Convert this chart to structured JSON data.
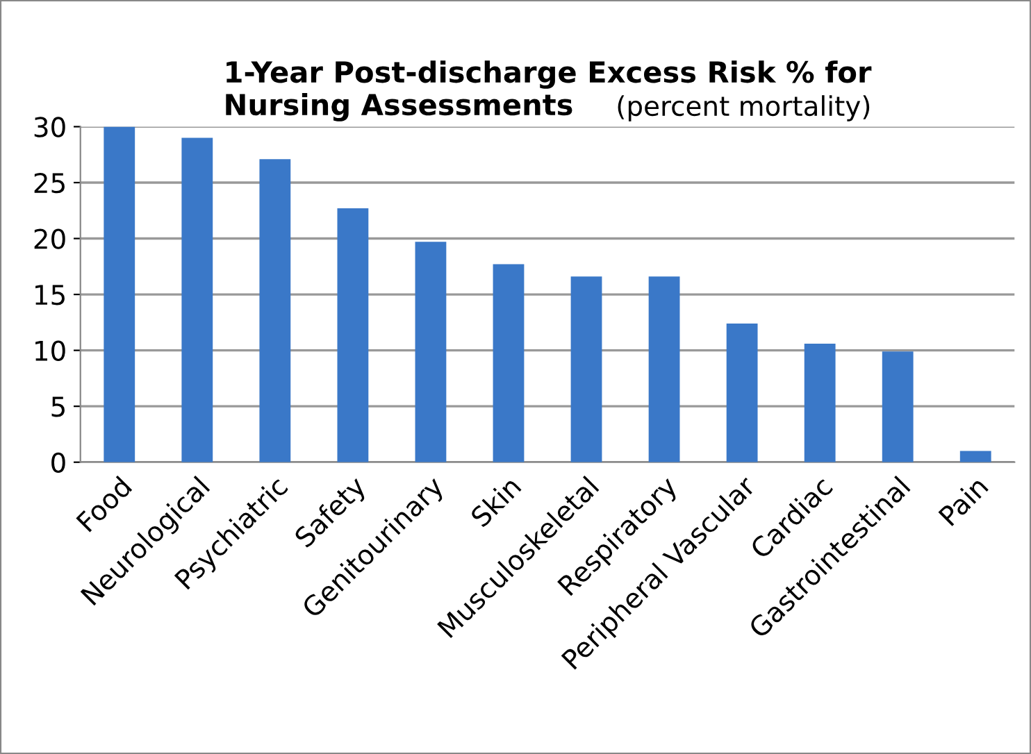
{
  "chart_data": {
    "type": "bar",
    "title": "1-Year Post-discharge Excess Risk % for\nNursing Assessments",
    "subtitle": "(percent mortality)",
    "categories": [
      "Food",
      "Neurological",
      "Psychiatric",
      "Safety",
      "Genitourinary",
      "Skin",
      "Musculoskeletal",
      "Respiratory",
      "Peripheral Vascular",
      "Cardiac",
      "Gastrointestinal",
      "Pain"
    ],
    "values": [
      30,
      29.0,
      27.1,
      22.7,
      19.7,
      17.7,
      16.6,
      16.6,
      12.4,
      10.6,
      9.9,
      1.0
    ],
    "color": "#3a78c8",
    "ylim": [
      0,
      30
    ],
    "yticks": [
      0,
      5,
      10,
      15,
      20,
      25,
      30
    ],
    "grid": "y",
    "legend": false
  }
}
